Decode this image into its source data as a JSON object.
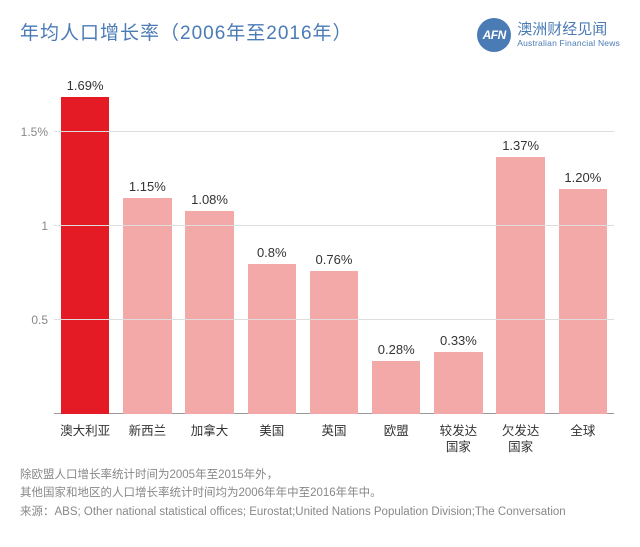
{
  "header": {
    "title": "年均人口增长率（2006年至2016年）",
    "brand_badge": "AFN",
    "brand_cn": "澳洲财经见闻",
    "brand_en": "Australian Financial News"
  },
  "chart": {
    "type": "bar",
    "ymax": 1.8,
    "yticks": [
      {
        "v": 0.5,
        "label": "0.5"
      },
      {
        "v": 1.0,
        "label": "1"
      },
      {
        "v": 1.5,
        "label": "1.5%"
      }
    ],
    "baseline_color": "#999999",
    "grid_color": "#dddddd",
    "label_color": "#333333",
    "tick_color": "#888888",
    "background": "#ffffff",
    "bar_width_pct": 78,
    "bars": [
      {
        "cat": "澳大利亚",
        "val": 1.69,
        "label": "1.69%",
        "color": "#e41b24"
      },
      {
        "cat": "新西兰",
        "val": 1.15,
        "label": "1.15%",
        "color": "#f3a9a8"
      },
      {
        "cat": "加拿大",
        "val": 1.08,
        "label": "1.08%",
        "color": "#f3a9a8"
      },
      {
        "cat": "美国",
        "val": 0.8,
        "label": "0.8%",
        "color": "#f3a9a8"
      },
      {
        "cat": "英国",
        "val": 0.76,
        "label": "0.76%",
        "color": "#f3a9a8"
      },
      {
        "cat": "欧盟",
        "val": 0.28,
        "label": "0.28%",
        "color": "#f3a9a8"
      },
      {
        "cat": "较发达\n国家",
        "val": 0.33,
        "label": "0.33%",
        "color": "#f3a9a8"
      },
      {
        "cat": "欠发达\n国家",
        "val": 1.37,
        "label": "1.37%",
        "color": "#f3a9a8"
      },
      {
        "cat": "全球",
        "val": 1.2,
        "label": "1.20%",
        "color": "#f3a9a8"
      }
    ]
  },
  "footer": {
    "line1": "除欧盟人口增长率统计时间为2005年至2015年外，",
    "line2": "其他国家和地区的人口增长率统计时间均为2006年年中至2016年年中。",
    "line3": "来源：ABS; Other national statistical offices; Eurostat;United Nations Population Division;The Conversation"
  },
  "colors": {
    "title": "#4a7bb5",
    "footer": "#888888"
  }
}
